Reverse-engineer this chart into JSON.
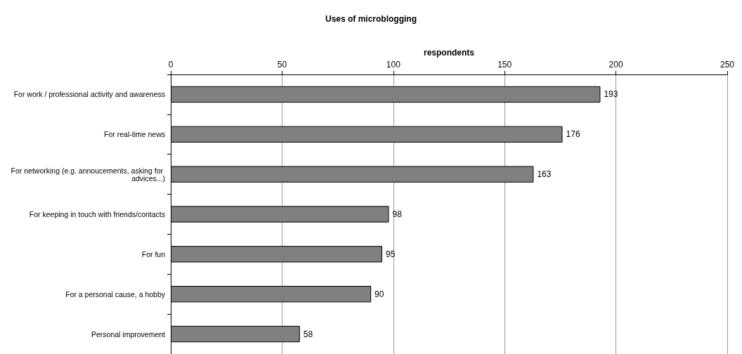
{
  "chart_data": {
    "type": "bar",
    "orientation": "horizontal",
    "title": "Uses of microblogging",
    "xlabel": "respondents",
    "categories": [
      "For work / professional activity and awareness",
      "For real-time news",
      "For networking (e.g. annoucements, asking for advices...)",
      "For keeping in touch with friends/contacts",
      "For fun",
      "For a personal cause, a hobby",
      "Personal improvement"
    ],
    "values": [
      193,
      176,
      163,
      98,
      95,
      90,
      58
    ],
    "color": "#808080",
    "xlim": [
      0,
      250
    ],
    "xticks": [
      0,
      50,
      100,
      150,
      200,
      250
    ],
    "grid": "x",
    "data_labels": true
  }
}
